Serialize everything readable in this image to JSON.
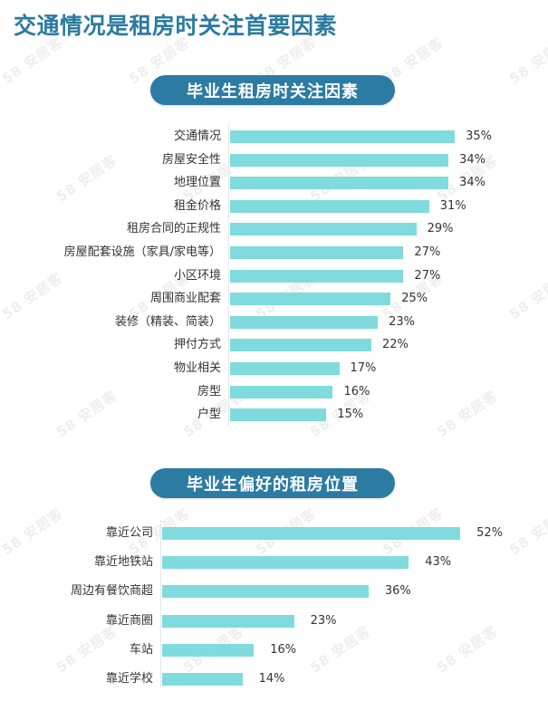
{
  "page": {
    "title": "交通情况是租房时关注首要因素",
    "watermark_text": "58 安居客"
  },
  "colors": {
    "title": "#2b7aa0",
    "pill": "#2c7ba3",
    "bar": "#7fdbdd"
  },
  "chart_data": [
    {
      "type": "bar",
      "orientation": "horizontal",
      "title": "毕业生租房时关注因素",
      "categories": [
        "交通情况",
        "房屋安全性",
        "地理位置",
        "租金价格",
        "租房合同的正规性",
        "房屋配套设施（家具/家电等）",
        "小区环境",
        "周围商业配套",
        "装修（精装、简装）",
        "押付方式",
        "物业相关",
        "房型",
        "户型"
      ],
      "values": [
        35,
        34,
        34,
        31,
        29,
        27,
        27,
        25,
        23,
        22,
        17,
        16,
        15
      ],
      "value_labels": [
        "35%",
        "34%",
        "34%",
        "31%",
        "29%",
        "27%",
        "27%",
        "25%",
        "23%",
        "22%",
        "17%",
        "16%",
        "15%"
      ],
      "unit": "%",
      "xlabel": "",
      "ylabel": "",
      "grid": false,
      "legend": null
    },
    {
      "type": "bar",
      "orientation": "horizontal",
      "title": "毕业生偏好的租房位置",
      "categories": [
        "靠近公司",
        "靠近地铁站",
        "周边有餐饮商超",
        "靠近商圈",
        "车站",
        "靠近学校"
      ],
      "values": [
        52,
        43,
        36,
        23,
        16,
        14
      ],
      "value_labels": [
        "52%",
        "43%",
        "36%",
        "23%",
        "16%",
        "14%"
      ],
      "unit": "%",
      "xlabel": "",
      "ylabel": "",
      "grid": false,
      "legend": null
    }
  ]
}
